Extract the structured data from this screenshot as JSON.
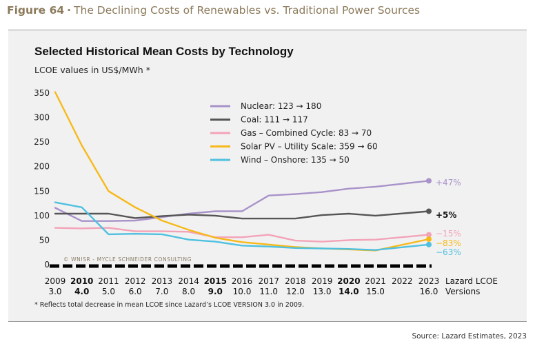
{
  "header": {
    "figure_label": "Figure 64",
    "separator": "·",
    "figure_title": "The Declining Costs of Renewables vs. Traditional Power Sources"
  },
  "footnote": "* Reflects total decrease in mean LCOE since Lazard’s  LCOE VERSION 3.0 in 2009.",
  "source": "Source: Lazard Estimates, 2023",
  "watermark": "© WNISR - MYCLE SCHNEIDER CONSULTING",
  "chart_data": {
    "type": "line",
    "title": "Selected Historical Mean Costs by Technology",
    "subtitle": "LCOE values in US$/MWh *",
    "x": [
      2009,
      2010,
      2011,
      2012,
      2013,
      2014,
      2015,
      2016,
      2017,
      2018,
      2019,
      2020,
      2021,
      2022,
      2023
    ],
    "x_tick_labels": [
      "2009",
      "2010",
      "2011",
      "2012",
      "2013",
      "2014",
      "2015",
      "2016",
      "2017",
      "2018",
      "2019",
      "2020",
      "2021",
      "2022",
      "2023"
    ],
    "x_axis_label": "Lazard LCOE",
    "version_labels": [
      "3.0",
      "4.0",
      "5.0",
      "6.0",
      "7.0",
      "8.0",
      "9.0",
      "10.0",
      "11.0",
      "12.0",
      "13.0",
      "14.0",
      "15.0",
      "",
      "16.0"
    ],
    "version_axis_label": "Versions",
    "bold_ticks": [
      2010,
      2015,
      2020
    ],
    "y_ticks": [
      0,
      50,
      100,
      150,
      200,
      250,
      300,
      350
    ],
    "ylim": [
      0,
      365
    ],
    "grid": false,
    "legend_position": "top-center",
    "series": [
      {
        "name": "Nuclear: 123 → 180",
        "color": "#a892c9",
        "end_label": "+47%",
        "end_label_color": "#a892c9",
        "values": [
          116,
          89,
          89,
          90,
          97,
          104,
          109,
          109,
          141,
          144,
          148,
          155,
          159,
          null,
          171
        ]
      },
      {
        "name": "Coal: 111 → 117",
        "color": "#555555",
        "end_label": "+5%",
        "end_label_color": "#111111",
        "values": [
          104,
          104,
          104,
          95,
          99,
          102,
          100,
          94,
          94,
          94,
          101,
          104,
          100,
          null,
          109
        ]
      },
      {
        "name": "Gas – Combined Cycle: 83 → 70",
        "color": "#f3a3b8",
        "end_label": "−15%",
        "end_label_color": "#f3a3b8",
        "values": [
          75,
          74,
          75,
          68,
          68,
          67,
          56,
          56,
          61,
          49,
          47,
          50,
          51,
          null,
          61
        ]
      },
      {
        "name": "Solar PV – Utility Scale: 359 → 60",
        "color": "#f7b918",
        "end_label": "−83%",
        "end_label_color": "#f7b918",
        "values": [
          352,
          243,
          150,
          117,
          90,
          71,
          55,
          46,
          41,
          36,
          33,
          31,
          29,
          null,
          52
        ]
      },
      {
        "name": "Wind – Onshore: 135 → 50",
        "color": "#4fc0e0",
        "end_label": "−63%",
        "end_label_color": "#4fc0e0",
        "values": [
          127,
          117,
          62,
          63,
          62,
          51,
          47,
          39,
          37,
          34,
          33,
          32,
          30,
          null,
          41
        ]
      }
    ]
  }
}
